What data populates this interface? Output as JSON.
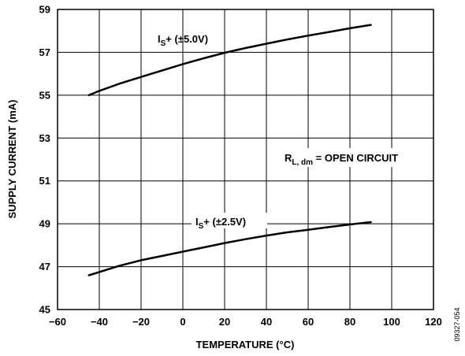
{
  "chart_data": {
    "type": "line",
    "title": "",
    "xlabel": "TEMPERATURE (°C)",
    "ylabel": "SUPPLY CURRENT (mA)",
    "xlim": [
      -60,
      120
    ],
    "ylim": [
      45,
      59
    ],
    "xticks": [
      -60,
      -40,
      -20,
      0,
      20,
      40,
      60,
      80,
      100,
      120
    ],
    "yticks": [
      45,
      47,
      49,
      51,
      53,
      55,
      57,
      59
    ],
    "xtick_labels": [
      "−60",
      "−40",
      "−20",
      "0",
      "20",
      "40",
      "60",
      "80",
      "100",
      "120"
    ],
    "ytick_labels": [
      "45",
      "47",
      "49",
      "51",
      "53",
      "55",
      "57",
      "59"
    ],
    "grid": true,
    "series": [
      {
        "label_main": "I",
        "label_sub": "S",
        "label_rest": "+ (±5.0V)",
        "x": [
          -45,
          -40,
          -30,
          -20,
          -10,
          0,
          10,
          20,
          30,
          40,
          50,
          60,
          70,
          80,
          90
        ],
        "y": [
          55.0,
          55.2,
          55.55,
          55.85,
          56.15,
          56.45,
          56.72,
          56.98,
          57.2,
          57.4,
          57.6,
          57.78,
          57.95,
          58.12,
          58.28
        ]
      },
      {
        "label_main": "I",
        "label_sub": "S",
        "label_rest": "+ (±2.5V)",
        "x": [
          -45,
          -40,
          -30,
          -20,
          -10,
          0,
          10,
          20,
          30,
          40,
          50,
          60,
          70,
          80,
          90
        ],
        "y": [
          46.6,
          46.75,
          47.05,
          47.3,
          47.5,
          47.7,
          47.9,
          48.1,
          48.28,
          48.45,
          48.6,
          48.72,
          48.85,
          48.97,
          49.08
        ]
      }
    ],
    "annotation": {
      "main": "R",
      "sub": "L, dm",
      "rest": " = OPEN CIRCUIT"
    },
    "figure_ref": "09327-054"
  }
}
